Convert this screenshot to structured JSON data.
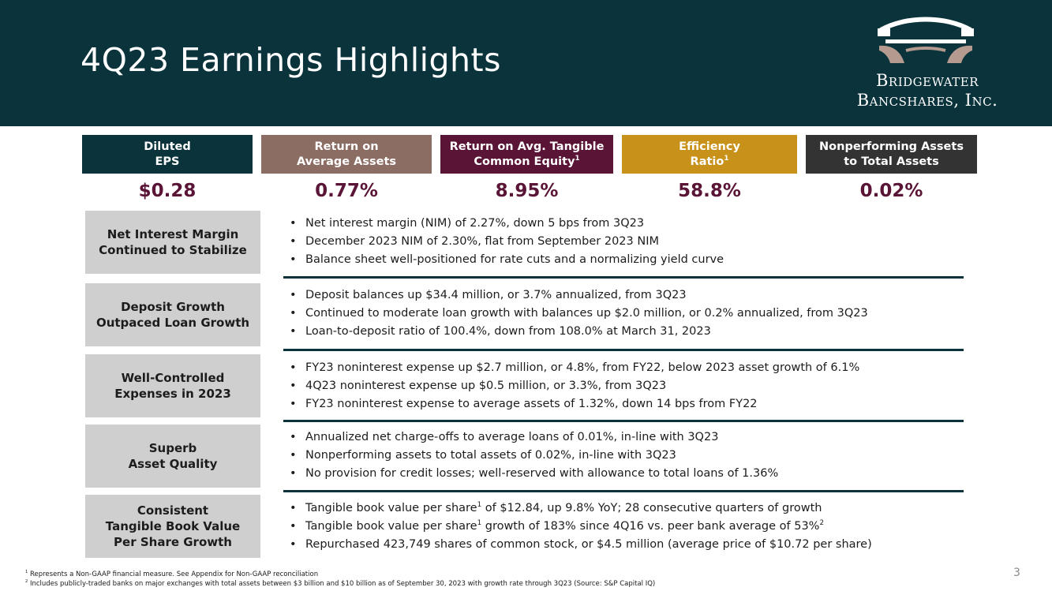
{
  "header": {
    "title": "4Q23 Earnings Highlights",
    "logo": {
      "line1": "Bridgewater",
      "line2": "Bancshares, Inc."
    }
  },
  "colors": {
    "header_bg": "#0b333b",
    "eps": "#0b333b",
    "roaa": "#8c6d64",
    "rotce": "#5a1436",
    "efficiency": "#c8911a",
    "npa": "#333333",
    "value_text": "#5a1436",
    "row_label_bg": "#cfcfcf"
  },
  "metrics": [
    {
      "label": "Diluted\nEPS",
      "value": "$0.28"
    },
    {
      "label": "Return on\nAverage Assets",
      "value": "0.77%"
    },
    {
      "label": "Return on Avg. Tangible\nCommon Equity",
      "sup": "1",
      "value": "8.95%"
    },
    {
      "label": "Efficiency\nRatio",
      "sup": "1",
      "value": "58.8%"
    },
    {
      "label": "Nonperforming Assets\nto Total Assets",
      "value": "0.02%"
    }
  ],
  "highlights": [
    {
      "label": "Net Interest Margin\nContinued to Stabilize",
      "bullets": [
        "Net interest margin (NIM) of 2.27%, down 5 bps from 3Q23",
        "December 2023 NIM of 2.30%, flat from September 2023 NIM",
        "Balance sheet well-positioned for rate cuts and a normalizing yield curve"
      ]
    },
    {
      "label": "Deposit Growth\nOutpaced Loan Growth",
      "bullets": [
        "Deposit balances up $34.4 million, or 3.7% annualized, from 3Q23",
        "Continued to moderate loan growth with balances up $2.0 million, or 0.2% annualized, from 3Q23",
        "Loan-to-deposit ratio of 100.4%, down from 108.0% at March 31, 2023"
      ]
    },
    {
      "label": "Well-Controlled\nExpenses in 2023",
      "bullets": [
        "FY23 noninterest expense up $2.7 million, or 4.8%, from FY22, below 2023 asset growth of 6.1%",
        "4Q23 noninterest expense up $0.5 million, or 3.3%, from 3Q23",
        "FY23 noninterest expense to average assets of 1.32%, down 14 bps from FY22"
      ]
    },
    {
      "label": "Superb\nAsset Quality",
      "bullets": [
        "Annualized net charge-offs to average loans of 0.01%, in-line with 3Q23",
        "Nonperforming assets to total assets of 0.02%, in-line with 3Q23",
        "No provision for credit losses; well-reserved with allowance to total loans of 1.36%"
      ]
    },
    {
      "label": "Consistent\nTangible Book Value\nPer Share Growth",
      "bullets": [
        {
          "a": "Tangible book value per share",
          "sup": "1",
          "b": " of $12.84, up 9.8% YoY; 28 consecutive quarters of growth"
        },
        {
          "a": "Tangible book value per share",
          "sup": "1",
          "b": " growth of 183% since 4Q16 vs. peer bank average of 53%",
          "sup2": "2"
        },
        "Repurchased 423,749 shares of common stock, or $4.5 million (average price of $10.72 per share)"
      ]
    }
  ],
  "footnotes": [
    {
      "sup": "1",
      "text": " Represents a Non-GAAP financial measure. See Appendix for Non-GAAP reconciliation"
    },
    {
      "sup": "2",
      "text": " Includes publicly-traded banks on major exchanges with total assets between $3 billion and $10 billion as of September 30, 2023 with growth rate through 3Q23 (Source: S&P Capital IQ)"
    }
  ],
  "page_number": "3"
}
